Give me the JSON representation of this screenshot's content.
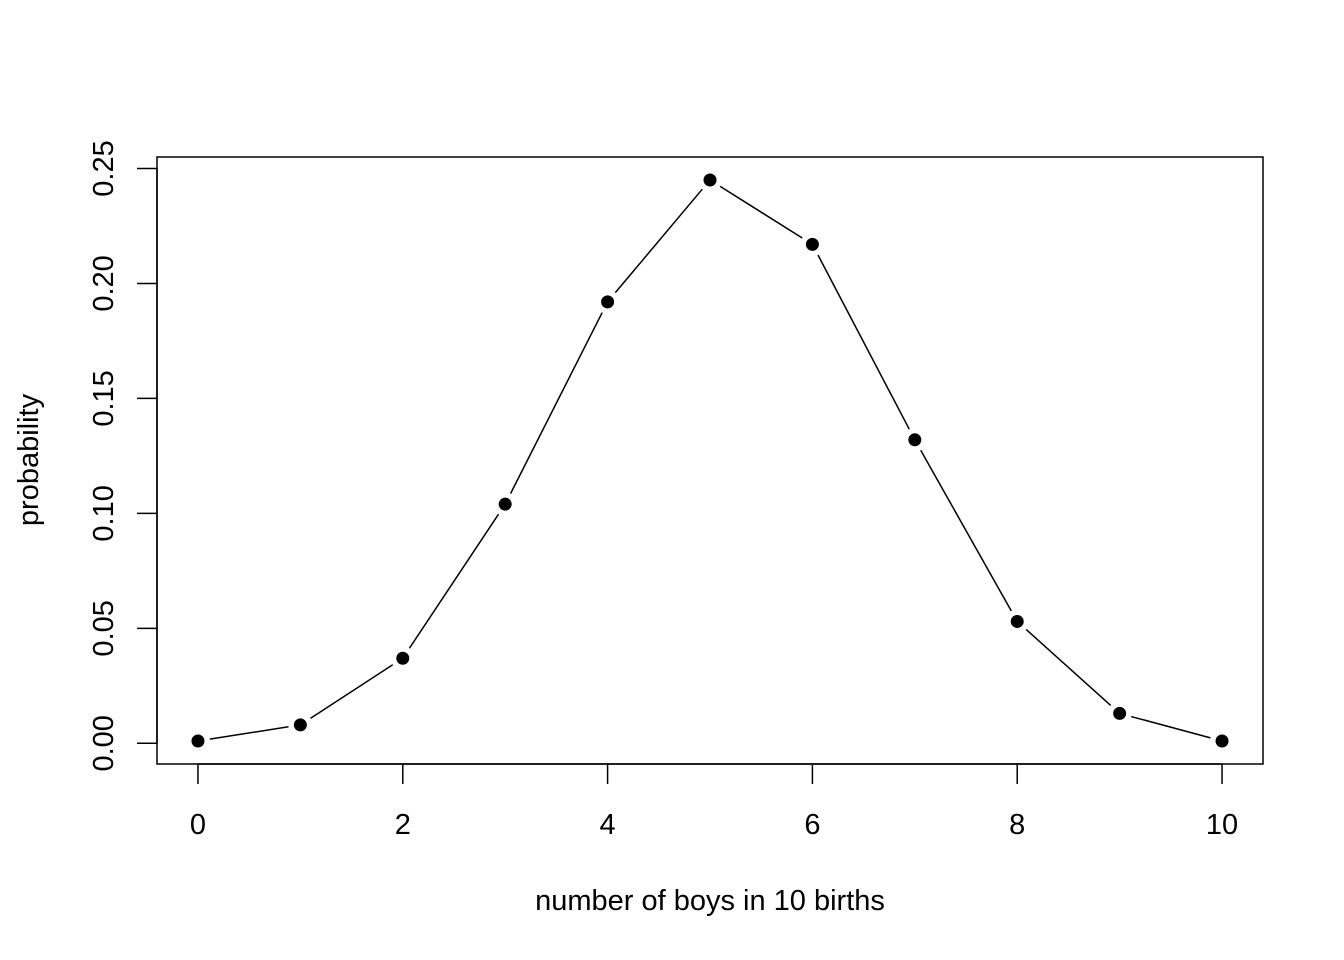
{
  "chart_data": {
    "type": "line",
    "title": "",
    "xlabel": "number of boys in 10 births",
    "ylabel": "probability",
    "x": [
      0,
      1,
      2,
      3,
      4,
      5,
      6,
      7,
      8,
      9,
      10
    ],
    "y": [
      0.001,
      0.008,
      0.037,
      0.104,
      0.192,
      0.245,
      0.217,
      0.132,
      0.053,
      0.013,
      0.001
    ],
    "xlim": [
      -0.4,
      10.4
    ],
    "ylim": [
      -0.009,
      0.255
    ],
    "xticks": [
      "0",
      "2",
      "4",
      "6",
      "8",
      "10"
    ],
    "yticks": [
      "0.00",
      "0.05",
      "0.10",
      "0.15",
      "0.20",
      "0.25"
    ],
    "marker": "filled-circle",
    "line_style": "line with gaps at points",
    "grid": false,
    "legend": "none",
    "colors": {
      "line": "#000000",
      "point": "#000000",
      "background": "#ffffff"
    }
  }
}
